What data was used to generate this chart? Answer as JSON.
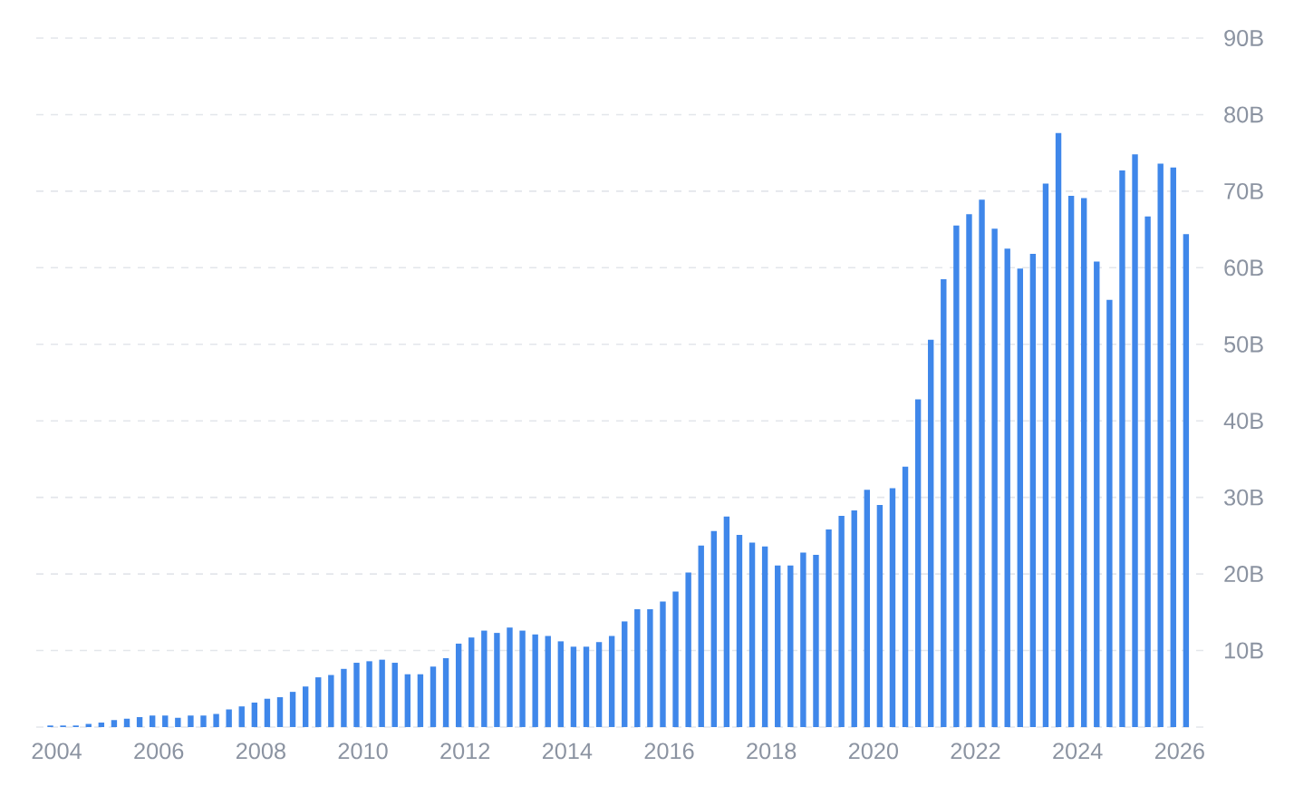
{
  "chart_data": {
    "type": "bar",
    "x": [
      2003.875,
      2004.125,
      2004.375,
      2004.625,
      2004.875,
      2005.125,
      2005.375,
      2005.625,
      2005.875,
      2006.125,
      2006.375,
      2006.625,
      2006.875,
      2007.125,
      2007.375,
      2007.625,
      2007.875,
      2008.125,
      2008.375,
      2008.625,
      2008.875,
      2009.125,
      2009.375,
      2009.625,
      2009.875,
      2010.125,
      2010.375,
      2010.625,
      2010.875,
      2011.125,
      2011.375,
      2011.625,
      2011.875,
      2012.125,
      2012.375,
      2012.625,
      2012.875,
      2013.125,
      2013.375,
      2013.625,
      2013.875,
      2014.125,
      2014.375,
      2014.625,
      2014.875,
      2015.125,
      2015.375,
      2015.625,
      2015.875,
      2016.125,
      2016.375,
      2016.625,
      2016.875,
      2017.125,
      2017.375,
      2017.625,
      2017.875,
      2018.125,
      2018.375,
      2018.625,
      2018.875,
      2019.125,
      2019.375,
      2019.625,
      2019.875,
      2020.125,
      2020.375,
      2020.625,
      2020.875,
      2021.125,
      2021.375,
      2021.625,
      2021.875,
      2022.125,
      2022.375,
      2022.625,
      2022.875,
      2023.125,
      2023.375,
      2023.625,
      2023.875,
      2024.125,
      2024.375,
      2024.625,
      2024.875,
      2025.125,
      2025.375,
      2025.625,
      2025.875,
      2026.125
    ],
    "values": [
      0.2,
      0.2,
      0.2,
      0.4,
      0.6,
      0.9,
      1.1,
      1.3,
      1.5,
      1.5,
      1.2,
      1.5,
      1.5,
      1.7,
      2.3,
      2.7,
      3.2,
      3.7,
      3.9,
      4.6,
      5.3,
      6.5,
      6.8,
      7.6,
      8.4,
      8.6,
      8.8,
      8.4,
      6.9,
      6.9,
      7.9,
      9.0,
      10.9,
      11.7,
      12.6,
      12.3,
      13.0,
      12.6,
      12.1,
      11.9,
      11.2,
      10.5,
      10.5,
      11.1,
      11.9,
      13.8,
      15.4,
      15.4,
      16.4,
      17.7,
      20.2,
      23.7,
      25.6,
      27.5,
      25.1,
      24.1,
      23.6,
      21.1,
      21.1,
      22.8,
      22.5,
      25.8,
      27.6,
      28.3,
      31.0,
      29.0,
      31.2,
      34.0,
      42.8,
      50.6,
      58.5,
      65.5,
      67.0,
      68.9,
      65.1,
      62.5,
      59.9,
      61.8,
      71.0,
      77.6,
      69.4,
      69.1,
      60.8,
      55.8,
      72.7,
      74.8,
      66.7,
      73.6,
      73.1,
      64.4
    ],
    "color": "#3f87ea",
    "xlim": [
      2003.6,
      2026.5
    ],
    "xticks": [
      2004,
      2006,
      2008,
      2010,
      2012,
      2014,
      2016,
      2018,
      2020,
      2022,
      2024,
      2026
    ],
    "ylim": [
      0,
      90
    ],
    "yticks": [
      {
        "value": 0,
        "label": null
      },
      {
        "value": 10,
        "label": "10B"
      },
      {
        "value": 20,
        "label": "20B"
      },
      {
        "value": 30,
        "label": "30B"
      },
      {
        "value": 40,
        "label": "40B"
      },
      {
        "value": 50,
        "label": "50B"
      },
      {
        "value": 60,
        "label": "60B"
      },
      {
        "value": 70,
        "label": "70B"
      },
      {
        "value": 80,
        "label": "80B"
      },
      {
        "value": 90,
        "label": "90B"
      }
    ],
    "grid": "y"
  }
}
